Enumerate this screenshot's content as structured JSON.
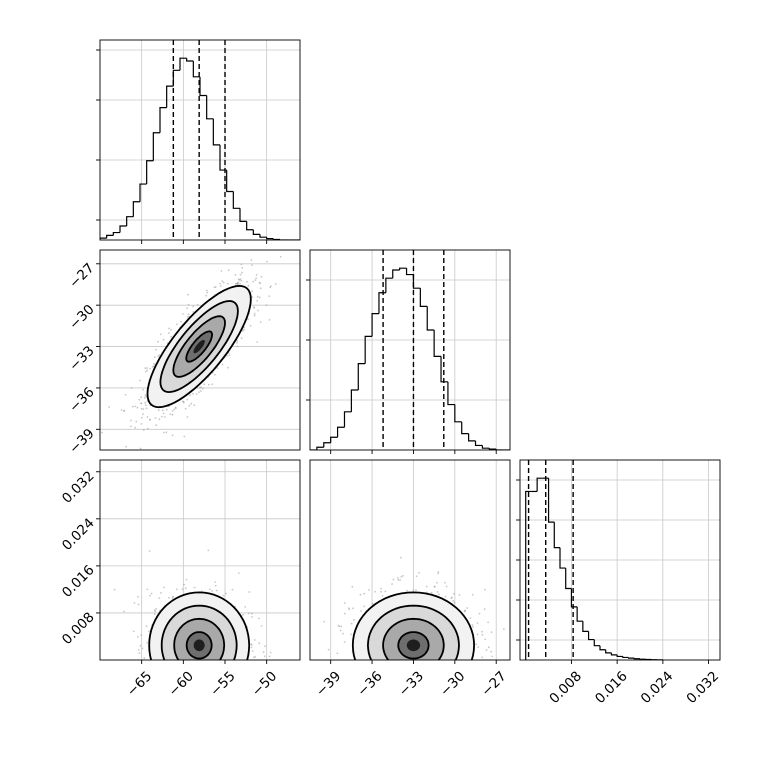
{
  "chart_data": [
    {
      "id": "hist_x",
      "type": "bar",
      "subtype": "step-histogram",
      "title": "",
      "xlabel": "",
      "ylabel": "",
      "xlim": [
        -70,
        -46
      ],
      "bin_edges": [
        -70.0,
        -69.2,
        -68.4,
        -67.6,
        -66.8,
        -66.0,
        -65.2,
        -64.4,
        -63.6,
        -62.8,
        -62.0,
        -61.2,
        -60.4,
        -59.6,
        -58.8,
        -58.0,
        -57.2,
        -56.4,
        -55.6,
        -54.8,
        -54.0,
        -53.2,
        -52.4,
        -51.6,
        -50.8,
        -50.0,
        -49.2,
        -48.4,
        -47.6,
        -46.8,
        -46.0
      ],
      "counts": [
        0.2,
        0.5,
        0.8,
        1.5,
        2.5,
        4.1,
        6.0,
        8.5,
        11.5,
        14.2,
        16.5,
        18.2,
        19.5,
        19.2,
        17.5,
        15.5,
        13.0,
        10.2,
        7.5,
        5.2,
        3.4,
        2.0,
        1.1,
        0.6,
        0.3,
        0.15,
        0.05,
        0,
        0,
        0
      ],
      "quantile_lines": [
        -61.2,
        -58.1,
        -55.0
      ],
      "xticks": [
        "−65",
        "−60",
        "−55",
        "−50"
      ],
      "xtick_values": [
        -65,
        -60,
        -55,
        -50
      ]
    },
    {
      "id": "scatter_xy",
      "type": "scatter",
      "subtype": "2d-density-contour",
      "title": "",
      "xlabel": "",
      "ylabel": "",
      "xlim": [
        -70,
        -46
      ],
      "ylim": [
        -40.5,
        -26
      ],
      "center": [
        -58.1,
        -33.0
      ],
      "sigma": [
        3.1,
        2.2
      ],
      "correlation": 0.78,
      "contour_levels_sigma": [
        0.5,
        1.0,
        1.5,
        2.0
      ],
      "yticks": [
        "−27",
        "−30",
        "−33",
        "−36",
        "−39"
      ],
      "ytick_values": [
        -27,
        -30,
        -33,
        -36,
        -39
      ]
    },
    {
      "id": "hist_y",
      "type": "bar",
      "subtype": "step-histogram",
      "title": "",
      "xlabel": "",
      "ylabel": "",
      "xlim": [
        -40.5,
        -26
      ],
      "bin_edges": [
        -40.5,
        -40.0,
        -39.5,
        -39.0,
        -38.5,
        -38.0,
        -37.5,
        -37.0,
        -36.5,
        -36.0,
        -35.5,
        -35.0,
        -34.5,
        -34.0,
        -33.5,
        -33.0,
        -32.5,
        -32.0,
        -31.5,
        -31.0,
        -30.5,
        -30.0,
        -29.5,
        -29.0,
        -28.5,
        -28.0,
        -27.5,
        -27.0,
        -26.5,
        -26.0
      ],
      "counts": [
        0,
        0.3,
        0.8,
        1.4,
        2.5,
        4.2,
        6.6,
        9.5,
        12.5,
        15.0,
        17.3,
        18.9,
        19.8,
        20.0,
        19.3,
        17.8,
        15.8,
        13.2,
        10.3,
        7.5,
        5.0,
        3.1,
        1.8,
        1.0,
        0.5,
        0.2,
        0.1,
        0,
        0
      ],
      "quantile_lines": [
        -35.2,
        -33.0,
        -30.8
      ],
      "xticks": [
        "−39",
        "−36",
        "−33",
        "−30",
        "−27"
      ],
      "xtick_values": [
        -39,
        -36,
        -33,
        -30,
        -27
      ]
    },
    {
      "id": "scatter_xz",
      "type": "scatter",
      "subtype": "2d-density-contour",
      "title": "",
      "xlabel": "",
      "ylabel": "",
      "xlim": [
        -70,
        -46
      ],
      "ylim": [
        0,
        0.034
      ],
      "center": [
        -58.1,
        0.0025
      ],
      "sigma": [
        3.0,
        0.0045
      ],
      "correlation": 0,
      "contour_levels_sigma": [
        0.5,
        1.0,
        1.5,
        2.0
      ],
      "xticks": [
        "−65",
        "−60",
        "−55",
        "−50"
      ],
      "xtick_values": [
        -65,
        -60,
        -55,
        -50
      ],
      "yticks": [
        "0.032",
        "0.024",
        "0.016",
        "0.008"
      ],
      "ytick_values": [
        0.032,
        0.024,
        0.016,
        0.008
      ]
    },
    {
      "id": "scatter_yz",
      "type": "scatter",
      "subtype": "2d-density-contour",
      "title": "",
      "xlabel": "",
      "ylabel": "",
      "xlim": [
        -40.5,
        -26
      ],
      "ylim": [
        0,
        0.034
      ],
      "center": [
        -33.0,
        0.0025
      ],
      "sigma": [
        2.2,
        0.0045
      ],
      "correlation": 0,
      "contour_levels_sigma": [
        0.5,
        1.0,
        1.5,
        2.0
      ],
      "xticks": [
        "−39",
        "−36",
        "−33",
        "−30",
        "−27"
      ],
      "xtick_values": [
        -39,
        -36,
        -33,
        -30,
        -27
      ]
    },
    {
      "id": "hist_z",
      "type": "bar",
      "subtype": "step-histogram",
      "title": "",
      "xlabel": "",
      "ylabel": "",
      "xlim": [
        -0.001,
        0.034
      ],
      "bin_edges": [
        0.0,
        0.001,
        0.002,
        0.003,
        0.004,
        0.005,
        0.006,
        0.007,
        0.008,
        0.009,
        0.01,
        0.011,
        0.012,
        0.013,
        0.014,
        0.015,
        0.016,
        0.017,
        0.018,
        0.019,
        0.02,
        0.021,
        0.022,
        0.023,
        0.024
      ],
      "counts": [
        16.5,
        16.5,
        17.8,
        17.8,
        13.5,
        11.0,
        9.0,
        7.0,
        5.2,
        3.8,
        2.8,
        2.0,
        1.4,
        1.0,
        0.7,
        0.5,
        0.35,
        0.25,
        0.18,
        0.12,
        0.08,
        0.05,
        0.03,
        0.02
      ],
      "quantile_lines": [
        0.0005,
        0.0035,
        0.0083
      ],
      "xticks": [
        "0.008",
        "0.016",
        "0.024",
        "0.032"
      ],
      "xtick_values": [
        0.008,
        0.016,
        0.024,
        0.032
      ]
    }
  ]
}
